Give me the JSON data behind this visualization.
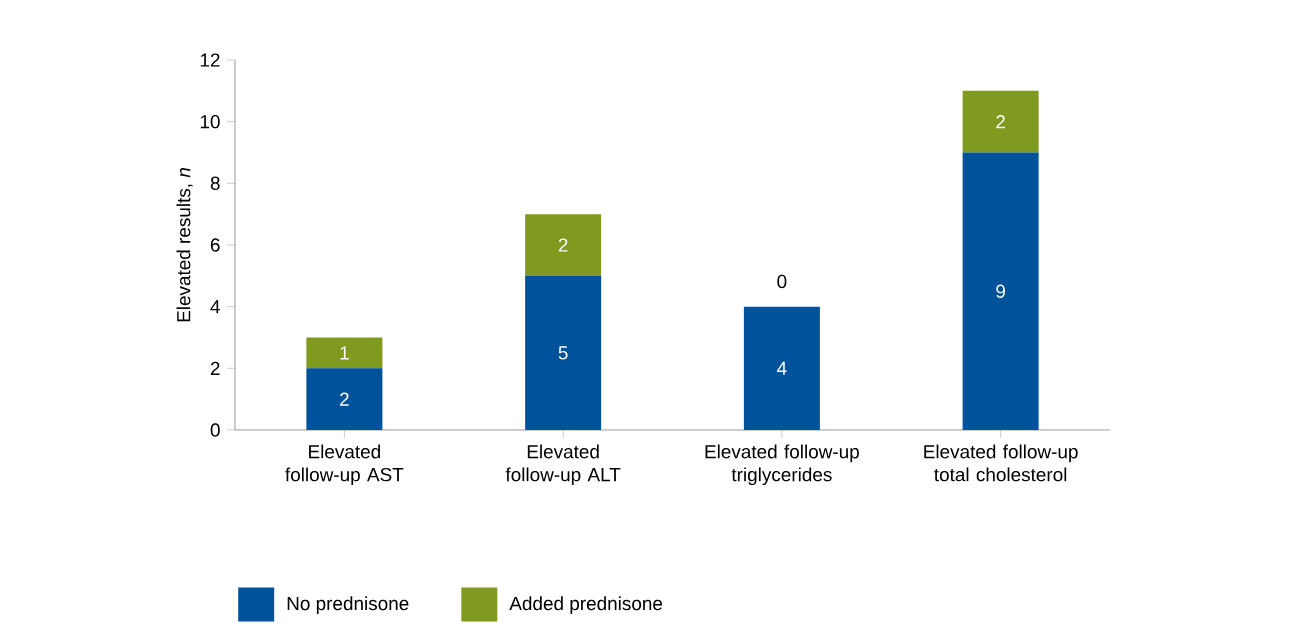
{
  "chart_data": {
    "type": "bar",
    "stacked": true,
    "ylabel": "Elevated results, *n*",
    "categories": [
      "Elevated follow-up AST",
      "Elevated follow-up ALT",
      "Elevated follow-up triglycerides",
      "Elevated follow-up total cholesterol"
    ],
    "series": [
      {
        "name": "No prednisone",
        "color": "#00529b",
        "values": [
          2,
          5,
          4,
          9
        ]
      },
      {
        "name": "Added prednisone",
        "color": "#7f9a1e",
        "values": [
          1,
          2,
          0,
          2
        ]
      }
    ],
    "ylim": [
      0,
      12
    ],
    "yticks": [
      0,
      2,
      4,
      6,
      8,
      10,
      12
    ],
    "data_labels": true,
    "grid": false,
    "legend": "bottom"
  }
}
